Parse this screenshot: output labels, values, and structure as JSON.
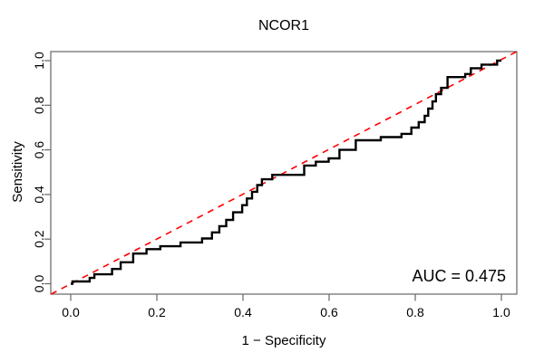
{
  "chart_data": {
    "type": "line",
    "subtype": "roc-step-curve",
    "title": "NCOR1",
    "xlabel": "1 − Specificity",
    "ylabel": "Sensitivity",
    "xlim": [
      0,
      1
    ],
    "ylim": [
      0,
      1
    ],
    "grid": false,
    "legend": "none",
    "x_ticks": [
      0.0,
      0.2,
      0.4,
      0.6,
      0.8,
      1.0
    ],
    "y_ticks": [
      0.0,
      0.2,
      0.4,
      0.6,
      0.8,
      1.0
    ],
    "x_tick_labels": [
      "0.0",
      "0.2",
      "0.4",
      "0.6",
      "0.8",
      "1.0"
    ],
    "y_tick_labels": [
      "0.0",
      "0.2",
      "0.4",
      "0.6",
      "0.8",
      "1.0"
    ],
    "annotation": {
      "text": "AUC = 0.475",
      "position": "bottom-right-inside"
    },
    "colors": {
      "curve": "#000000",
      "reference_line": "#FF0000",
      "axis": "#666666",
      "text": "#000000",
      "background": "#ffffff"
    },
    "series": [
      {
        "name": "ROC curve NCOR1",
        "style": "step",
        "color": "#000000",
        "plateaus": [
          [
            0.0,
            0.004,
            0.0
          ],
          [
            0.004,
            0.04,
            0.01
          ],
          [
            0.044,
            0.052,
            0.026
          ],
          [
            0.055,
            0.092,
            0.042
          ],
          [
            0.096,
            0.112,
            0.066
          ],
          [
            0.116,
            0.14,
            0.096
          ],
          [
            0.145,
            0.172,
            0.135
          ],
          [
            0.176,
            0.208,
            0.155
          ],
          [
            0.208,
            0.25,
            0.168
          ],
          [
            0.255,
            0.302,
            0.185
          ],
          [
            0.305,
            0.325,
            0.203
          ],
          [
            0.328,
            0.342,
            0.23
          ],
          [
            0.345,
            0.358,
            0.258
          ],
          [
            0.361,
            0.374,
            0.286
          ],
          [
            0.377,
            0.395,
            0.32
          ],
          [
            0.398,
            0.406,
            0.352
          ],
          [
            0.409,
            0.418,
            0.382
          ],
          [
            0.421,
            0.43,
            0.412
          ],
          [
            0.433,
            0.441,
            0.442
          ],
          [
            0.444,
            0.464,
            0.468
          ],
          [
            0.468,
            0.538,
            0.488
          ],
          [
            0.542,
            0.566,
            0.53
          ],
          [
            0.569,
            0.596,
            0.547
          ],
          [
            0.599,
            0.62,
            0.562
          ],
          [
            0.624,
            0.658,
            0.6
          ],
          [
            0.662,
            0.716,
            0.643
          ],
          [
            0.72,
            0.764,
            0.657
          ],
          [
            0.768,
            0.788,
            0.672
          ],
          [
            0.791,
            0.806,
            0.7
          ],
          [
            0.808,
            0.82,
            0.724
          ],
          [
            0.822,
            0.828,
            0.753
          ],
          [
            0.83,
            0.838,
            0.785
          ],
          [
            0.84,
            0.846,
            0.817
          ],
          [
            0.848,
            0.858,
            0.85
          ],
          [
            0.86,
            0.872,
            0.878
          ],
          [
            0.875,
            0.914,
            0.926
          ],
          [
            0.916,
            0.926,
            0.94
          ],
          [
            0.929,
            0.95,
            0.966
          ],
          [
            0.954,
            0.988,
            0.982
          ],
          [
            0.99,
            1.0,
            1.0
          ]
        ]
      },
      {
        "name": "chance reference diagonal",
        "style": "dashed",
        "color": "#FF0000",
        "points": [
          [
            -0.046,
            -0.047
          ],
          [
            1.036,
            1.041
          ]
        ]
      }
    ]
  }
}
